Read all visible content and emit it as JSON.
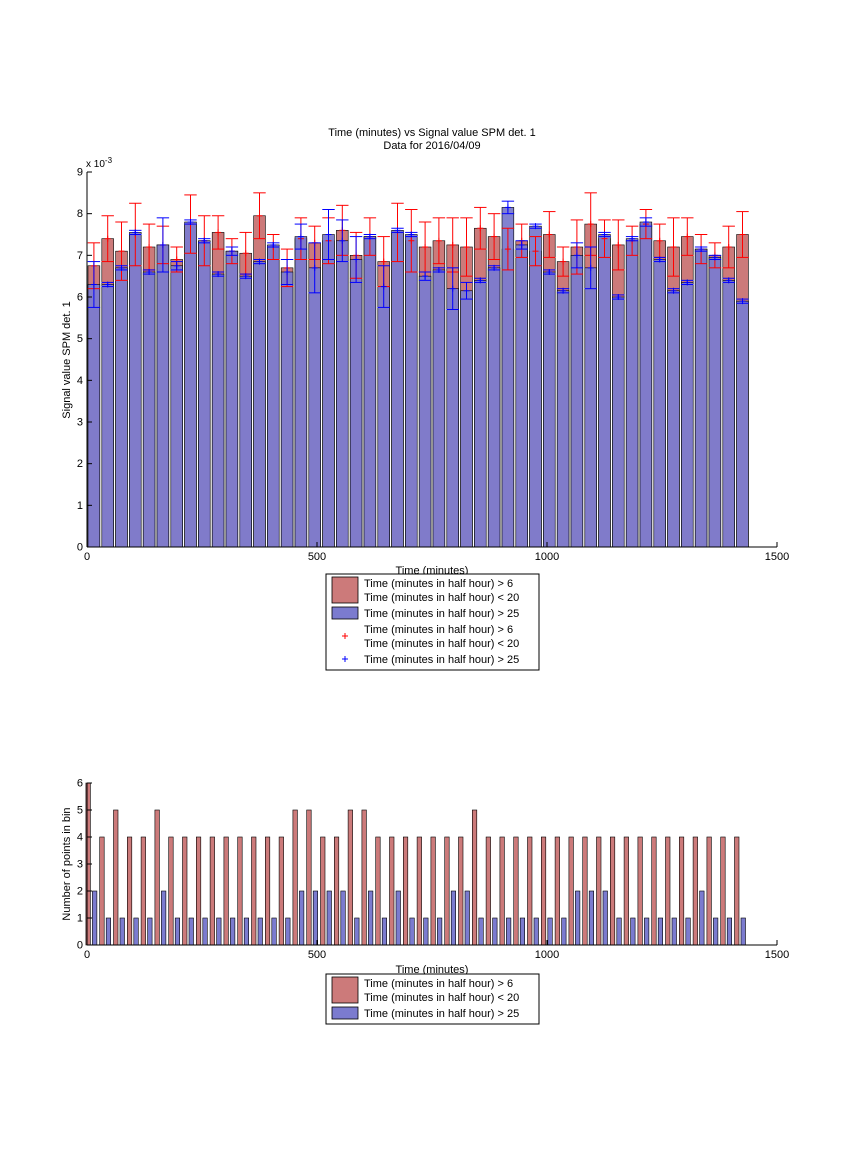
{
  "chart_data": [
    {
      "type": "bar",
      "title": "Time (minutes) vs Signal value SPM det. 1",
      "subtitle": "Data for 2016/04/09",
      "xlabel": "Time (minutes)",
      "ylabel": "Signal value SPM det. 1",
      "exponent_label": "x 10",
      "exponent_power": "-3",
      "xlim": [
        0,
        1500
      ],
      "ylim": [
        0,
        9
      ],
      "xticks": [
        "0",
        "500",
        "1000",
        "1500"
      ],
      "yticks": [
        "0",
        "1",
        "2",
        "3",
        "4",
        "5",
        "6",
        "7",
        "8",
        "9"
      ],
      "bin_width": 30,
      "x": [
        15,
        45,
        75,
        105,
        135,
        165,
        195,
        225,
        255,
        285,
        315,
        345,
        375,
        405,
        435,
        465,
        495,
        525,
        555,
        585,
        615,
        645,
        675,
        705,
        735,
        765,
        795,
        825,
        855,
        885,
        915,
        945,
        975,
        1005,
        1035,
        1065,
        1095,
        1125,
        1155,
        1185,
        1215,
        1245,
        1275,
        1305,
        1335,
        1365,
        1395,
        1425
      ],
      "series": [
        {
          "name": "Time (minutes in half hour) > 6\nTime (minutes in half hour) < 20",
          "color": "#cc7a7a",
          "values": [
            6.75,
            7.4,
            7.1,
            7.5,
            7.2,
            7.25,
            6.9,
            7.75,
            7.35,
            7.55,
            7.1,
            7.05,
            7.95,
            7.2,
            6.7,
            7.4,
            7.3,
            7.35,
            7.6,
            7.0,
            7.45,
            6.85,
            7.55,
            7.35,
            7.2,
            7.35,
            7.25,
            7.2,
            7.65,
            7.45,
            7.15,
            7.35,
            7.1,
            7.5,
            6.85,
            7.2,
            7.75,
            7.4,
            7.25,
            7.35,
            7.75,
            7.35,
            7.2,
            7.45,
            7.15,
            7.0,
            7.2,
            7.5
          ],
          "errors": [
            0.55,
            0.55,
            0.7,
            0.75,
            0.55,
            0.45,
            0.3,
            0.7,
            0.6,
            0.4,
            0.3,
            0.5,
            0.55,
            0.3,
            0.45,
            0.5,
            0.4,
            0.55,
            0.6,
            0.55,
            0.45,
            0.6,
            0.7,
            0.75,
            0.6,
            0.55,
            0.65,
            0.7,
            0.5,
            0.55,
            0.5,
            0.4,
            0.35,
            0.55,
            0.35,
            0.65,
            0.75,
            0.45,
            0.6,
            0.35,
            0.35,
            0.4,
            0.7,
            0.45,
            0.35,
            0.3,
            0.5,
            0.55
          ]
        },
        {
          "name": "Time (minutes in half hour) > 25",
          "color": "#7b7bcf",
          "values": [
            6.3,
            6.3,
            6.7,
            7.55,
            6.6,
            7.25,
            6.75,
            7.8,
            7.35,
            6.55,
            7.1,
            6.5,
            6.85,
            7.25,
            6.6,
            7.45,
            6.7,
            7.5,
            7.35,
            6.9,
            7.45,
            6.25,
            7.6,
            7.5,
            6.5,
            6.65,
            6.2,
            6.15,
            6.4,
            6.7,
            8.15,
            7.25,
            7.7,
            6.6,
            6.15,
            7.0,
            6.7,
            7.5,
            6.0,
            7.4,
            7.8,
            6.9,
            6.15,
            6.35,
            7.15,
            6.95,
            6.4,
            5.9
          ],
          "errors": [
            0.55,
            0.05,
            0.05,
            0.05,
            0.05,
            0.65,
            0.1,
            0.05,
            0.05,
            0.05,
            0.1,
            0.05,
            0.05,
            0.05,
            0.3,
            0.3,
            0.6,
            0.6,
            0.5,
            0.55,
            0.05,
            0.5,
            0.05,
            0.05,
            0.1,
            0.05,
            0.5,
            0.2,
            0.05,
            0.05,
            0.15,
            0.1,
            0.05,
            0.05,
            0.05,
            0.3,
            0.5,
            0.05,
            0.05,
            0.05,
            0.1,
            0.05,
            0.05,
            0.05,
            0.05,
            0.05,
            0.05,
            0.05
          ]
        }
      ],
      "legend": {
        "placement": "below",
        "entries": [
          {
            "type": "patch",
            "color": "#cc7a7a",
            "lines": [
              "Time (minutes in half hour) > 6",
              "Time (minutes in half hour) < 20"
            ]
          },
          {
            "type": "patch",
            "color": "#7b7bcf",
            "lines": [
              "Time (minutes in half hour) > 25"
            ]
          },
          {
            "type": "marker",
            "color": "#ff0000",
            "lines": [
              "Time (minutes in half hour) > 6",
              "Time (minutes in half hour) < 20"
            ]
          },
          {
            "type": "marker",
            "color": "#0000ff",
            "lines": [
              "Time (minutes in half hour) > 25"
            ]
          }
        ]
      }
    },
    {
      "type": "bar",
      "title": "",
      "xlabel": "Time (minutes)",
      "ylabel": "Number of points in bin",
      "xlim": [
        0,
        1500
      ],
      "ylim": [
        0,
        6
      ],
      "xticks": [
        "0",
        "500",
        "1000",
        "1500"
      ],
      "yticks": [
        "0",
        "1",
        "2",
        "3",
        "4",
        "5",
        "6"
      ],
      "bin_width": 30,
      "x": [
        15,
        45,
        75,
        105,
        135,
        165,
        195,
        225,
        255,
        285,
        315,
        345,
        375,
        405,
        435,
        465,
        495,
        525,
        555,
        585,
        615,
        645,
        675,
        705,
        735,
        765,
        795,
        825,
        855,
        885,
        915,
        945,
        975,
        1005,
        1035,
        1065,
        1095,
        1125,
        1155,
        1185,
        1215,
        1245,
        1275,
        1305,
        1335,
        1365,
        1395,
        1425
      ],
      "series": [
        {
          "name": "Time (minutes in half hour) > 6\nTime (minutes in half hour) < 20",
          "color": "#cc7a7a",
          "values": [
            6,
            4,
            5,
            4,
            4,
            5,
            4,
            4,
            4,
            4,
            4,
            4,
            4,
            4,
            4,
            5,
            5,
            4,
            4,
            5,
            5,
            4,
            4,
            4,
            4,
            4,
            4,
            4,
            5,
            4,
            4,
            4,
            4,
            4,
            4,
            4,
            4,
            4,
            4,
            4,
            4,
            4,
            4,
            4,
            4,
            4,
            4,
            4
          ]
        },
        {
          "name": "Time (minutes in half hour) > 25",
          "color": "#7b7bcf",
          "values": [
            2,
            1,
            1,
            1,
            1,
            2,
            1,
            1,
            1,
            1,
            1,
            1,
            1,
            1,
            1,
            2,
            2,
            2,
            2,
            1,
            2,
            1,
            2,
            1,
            1,
            1,
            2,
            2,
            1,
            1,
            1,
            1,
            1,
            1,
            1,
            2,
            2,
            2,
            1,
            1,
            1,
            1,
            1,
            1,
            2,
            1,
            1,
            1
          ]
        }
      ],
      "legend": {
        "placement": "below",
        "entries": [
          {
            "type": "patch",
            "color": "#cc7a7a",
            "lines": [
              "Time (minutes in half hour) > 6",
              "Time (minutes in half hour) < 20"
            ]
          },
          {
            "type": "patch",
            "color": "#7b7bcf",
            "lines": [
              "Time (minutes in half hour) > 25"
            ]
          }
        ]
      }
    }
  ]
}
